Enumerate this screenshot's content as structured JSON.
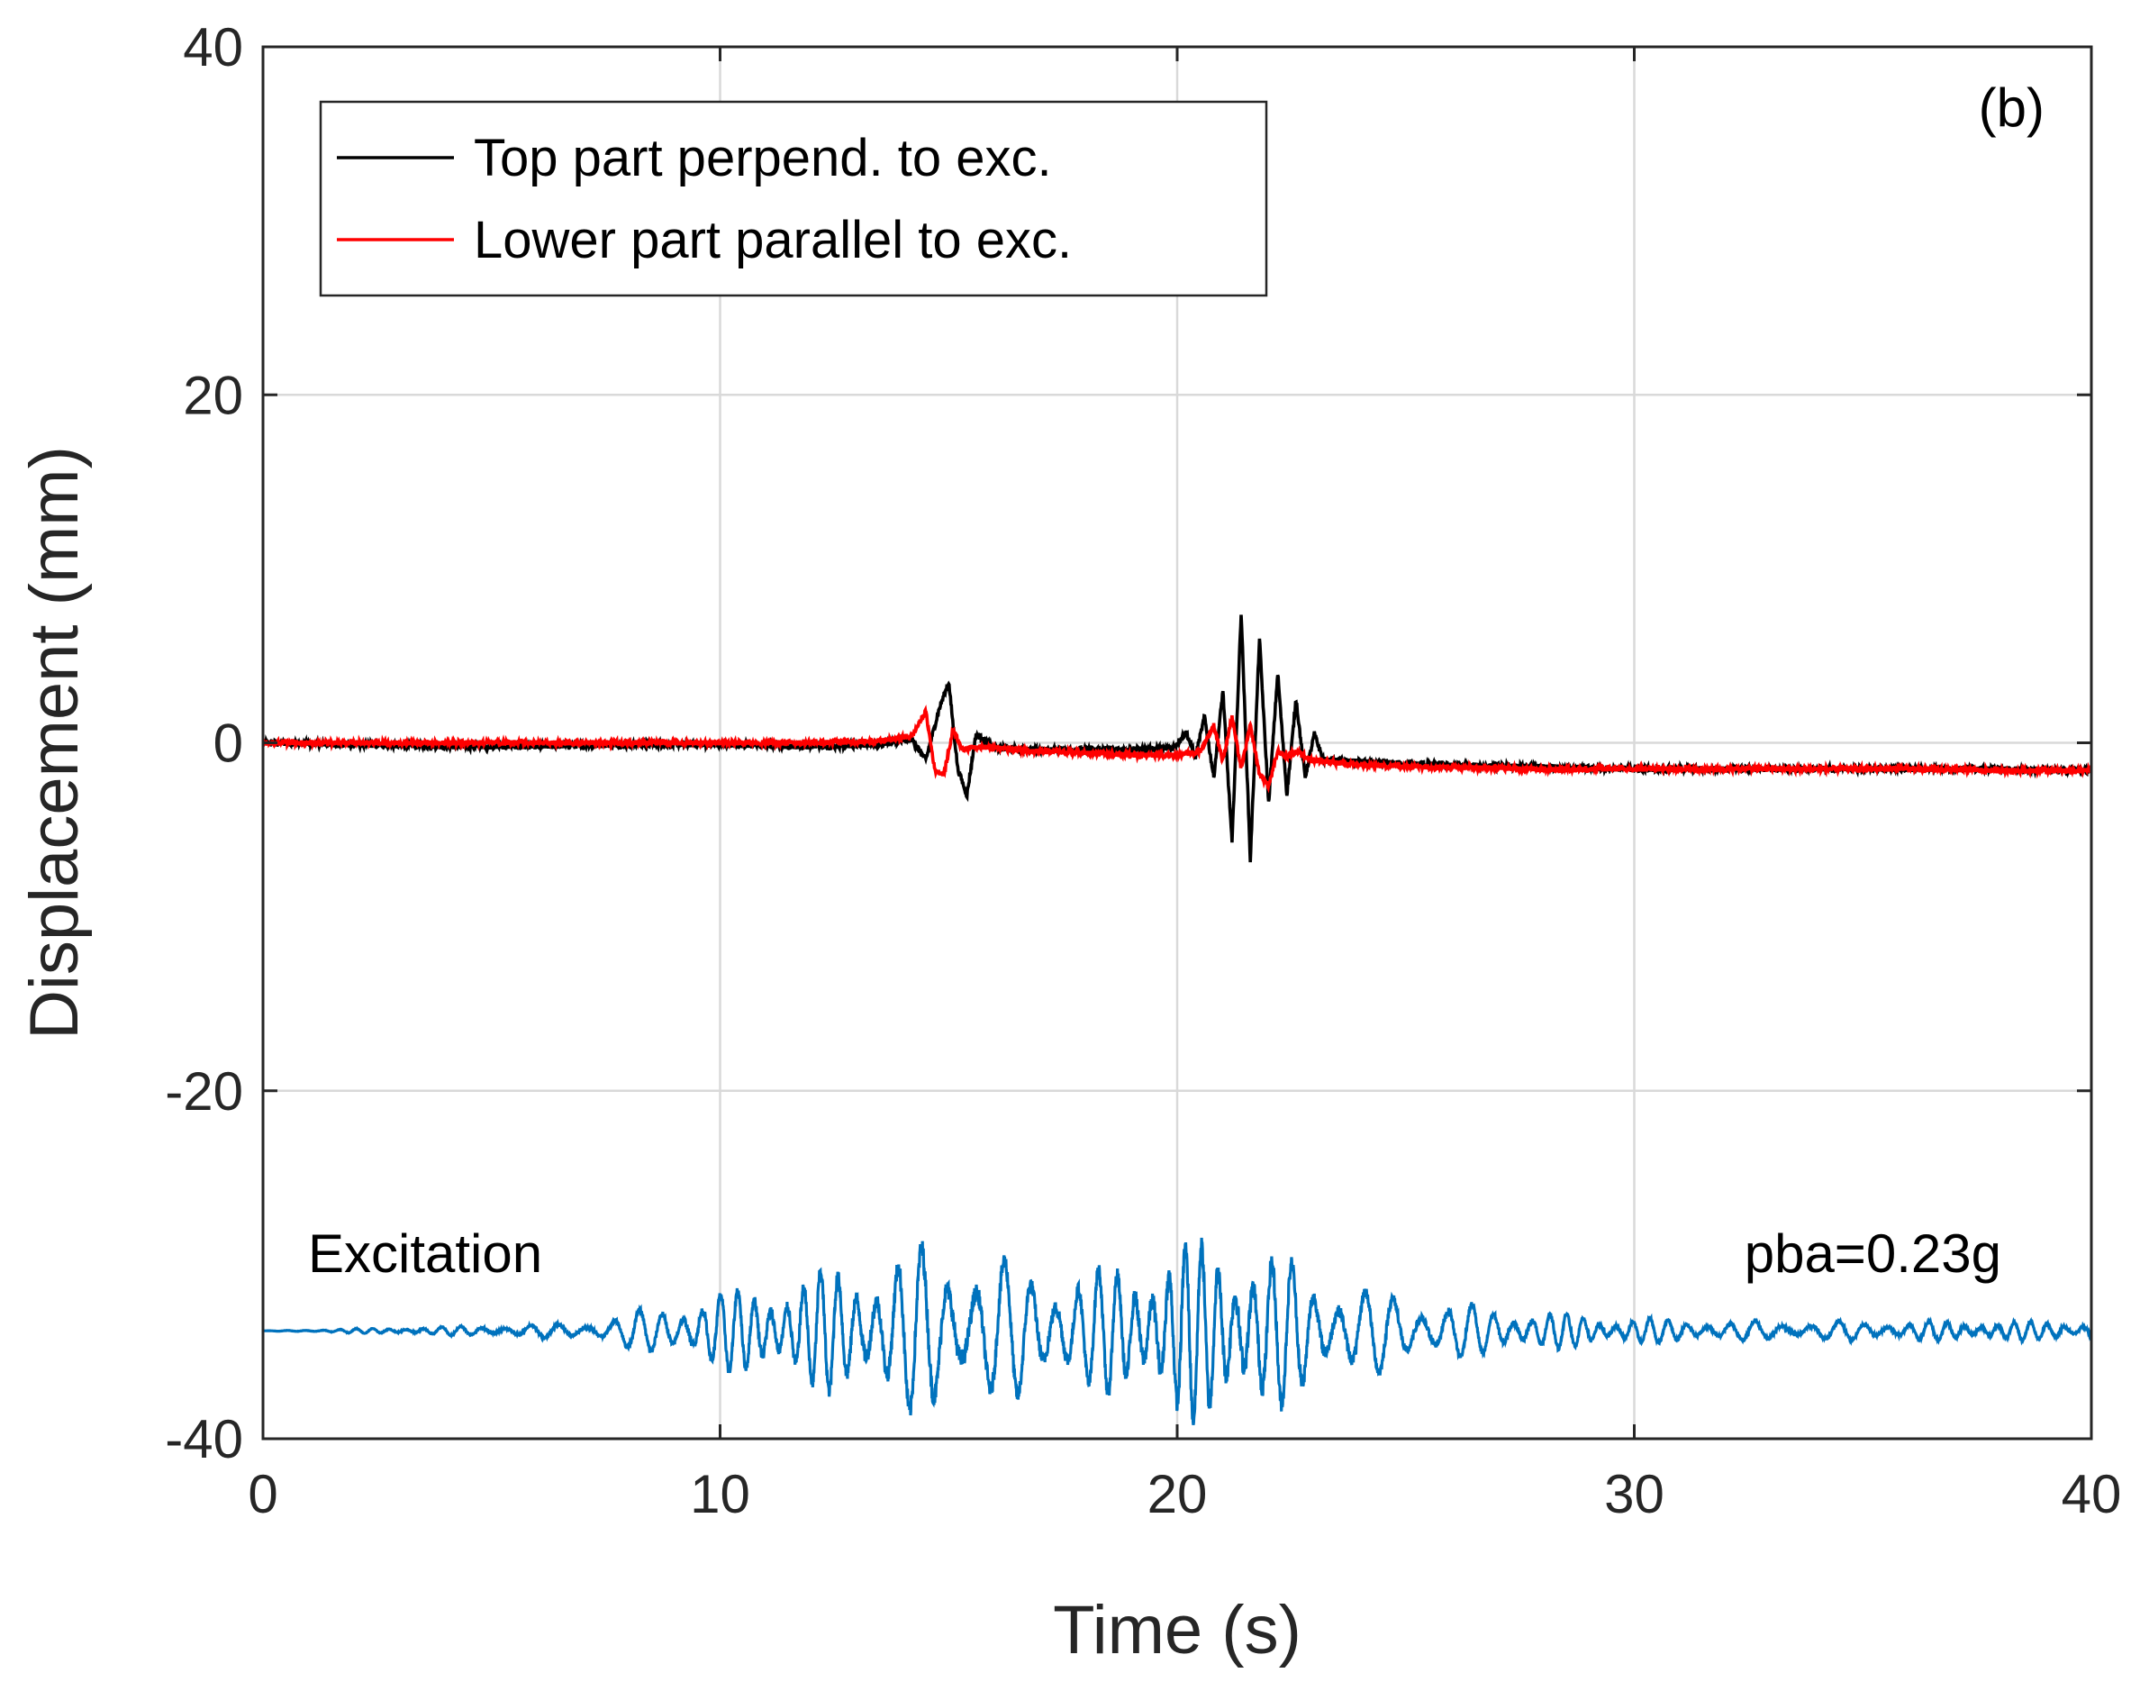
{
  "chart_data": {
    "type": "line",
    "panel_label": "(b)",
    "xlabel": "Time (s)",
    "ylabel": "Displacement (mm)",
    "xlim": [
      0,
      40
    ],
    "ylim": [
      -40,
      40
    ],
    "xticks": [
      0,
      10,
      20,
      30,
      40
    ],
    "yticks": [
      -40,
      -20,
      0,
      20,
      40
    ],
    "grid": true,
    "legend": {
      "position": "top-left"
    },
    "annotations": {
      "excitation_label": "Excitation",
      "pba_label": "pba=0.23g"
    },
    "series": [
      {
        "name": "Top part perpend. to exc.",
        "color": "#000000",
        "x": [
          0,
          2,
          4,
          6,
          8,
          10,
          12,
          13.5,
          14.2,
          14.5,
          14.8,
          15.0,
          15.2,
          15.4,
          15.6,
          16,
          17,
          18,
          19,
          19.9,
          20.2,
          20.4,
          20.6,
          20.8,
          21.0,
          21.2,
          21.4,
          21.6,
          21.8,
          22.0,
          22.2,
          22.4,
          22.6,
          22.8,
          23.0,
          23.2,
          24,
          26,
          28,
          30,
          32,
          34,
          36,
          38,
          40
        ],
        "values": [
          0.0,
          -0.1,
          -0.2,
          -0.2,
          -0.1,
          -0.1,
          -0.2,
          -0.1,
          0.2,
          -1.0,
          2.0,
          3.5,
          -1.5,
          -3.0,
          0.5,
          -0.3,
          -0.4,
          -0.4,
          -0.4,
          -0.3,
          0.6,
          -0.8,
          1.5,
          -2.0,
          3.0,
          -5.8,
          7.5,
          -6.8,
          6.0,
          -3.5,
          4.0,
          -3.0,
          2.5,
          -2.0,
          0.5,
          -1.0,
          -1.1,
          -1.3,
          -1.4,
          -1.5,
          -1.5,
          -1.5,
          -1.5,
          -1.5,
          -1.6
        ]
      },
      {
        "name": "Lower part parallel to exc.",
        "color": "#ff0000",
        "x": [
          0,
          2,
          4,
          6,
          8,
          10,
          12,
          13.5,
          14.2,
          14.5,
          14.7,
          14.9,
          15.1,
          15.3,
          15.6,
          16,
          17,
          18,
          19,
          20,
          20.5,
          20.8,
          21.0,
          21.2,
          21.4,
          21.6,
          21.8,
          22.0,
          22.2,
          22.4,
          22.6,
          23,
          24,
          26,
          28,
          30,
          32,
          34,
          36,
          38,
          40
        ],
        "values": [
          0.0,
          0.0,
          0.0,
          0.0,
          0.0,
          0.0,
          0.0,
          0.1,
          0.4,
          1.8,
          -1.6,
          -1.8,
          0.8,
          -0.4,
          -0.2,
          -0.3,
          -0.5,
          -0.6,
          -0.7,
          -0.7,
          -0.5,
          1.0,
          -1.0,
          1.5,
          -1.5,
          1.0,
          -1.8,
          -2.5,
          -0.5,
          -0.8,
          -0.5,
          -1.0,
          -1.3,
          -1.4,
          -1.5,
          -1.5,
          -1.5,
          -1.5,
          -1.5,
          -1.6,
          -1.6
        ]
      },
      {
        "name": "Excitation",
        "color": "#0072bd",
        "baseline": -33.8,
        "x_range": [
          0,
          40
        ],
        "envelope_points": [
          [
            0,
            0.0
          ],
          [
            7,
            0.4
          ],
          [
            9,
            1.5
          ],
          [
            11,
            2.5
          ],
          [
            13,
            3.5
          ],
          [
            14.5,
            4.5
          ],
          [
            16,
            3.8
          ],
          [
            18,
            3.0
          ],
          [
            20,
            4.5
          ],
          [
            21.5,
            4.8
          ],
          [
            23,
            3.0
          ],
          [
            25,
            1.8
          ],
          [
            27,
            1.2
          ],
          [
            29,
            0.8
          ],
          [
            32,
            0.5
          ],
          [
            40,
            0.5
          ]
        ]
      }
    ]
  }
}
